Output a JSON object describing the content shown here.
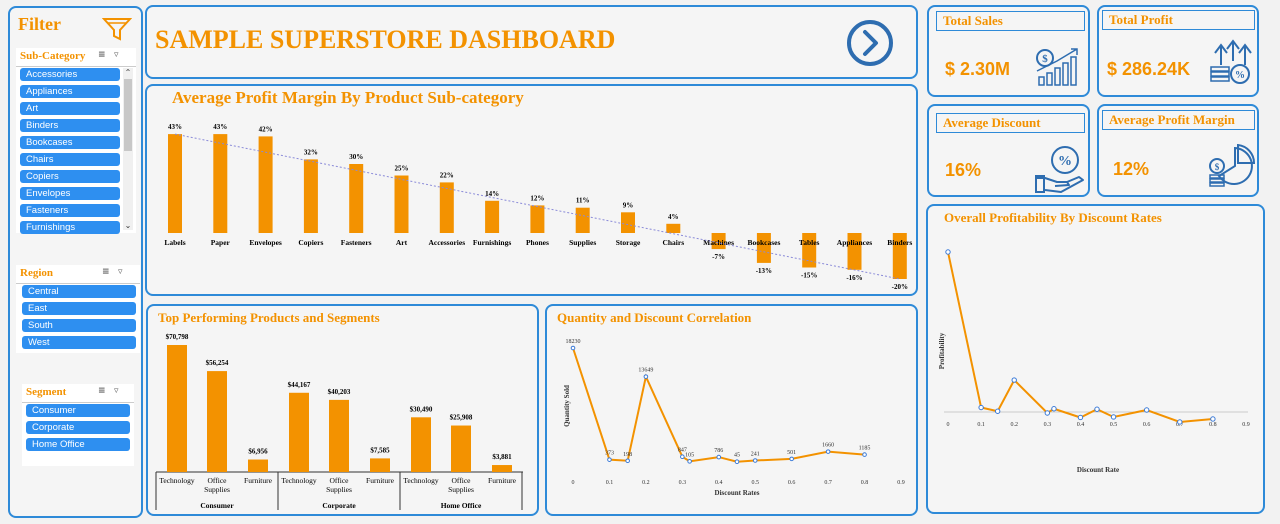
{
  "filter": {
    "title": "Filter",
    "subcategory": {
      "title": "Sub-Category",
      "items": [
        "Accessories",
        "Appliances",
        "Art",
        "Binders",
        "Bookcases",
        "Chairs",
        "Copiers",
        "Envelopes",
        "Fasteners",
        "Furnishings"
      ]
    },
    "region": {
      "title": "Region",
      "items": [
        "Central",
        "East",
        "South",
        "West"
      ]
    },
    "segment": {
      "title": "Segment",
      "items": [
        "Consumer",
        "Corporate",
        "Home Office"
      ]
    }
  },
  "header": {
    "title": "SAMPLE SUPERSTORE DASHBOARD"
  },
  "kpis": {
    "total_sales": {
      "label": "Total Sales",
      "value": "$ 2.30M"
    },
    "total_profit": {
      "label": "Total Profit",
      "value": "$ 286.24K"
    },
    "avg_discount": {
      "label": "Average Discount",
      "value": "16%"
    },
    "avg_margin": {
      "label": "Average Profit Margin",
      "value": "12%"
    }
  },
  "colors": {
    "accent": "#f39200",
    "border": "#2e8ad8",
    "chip": "#2e8ff0",
    "trend": "#8a8ad8"
  },
  "chart_data": [
    {
      "id": "margin",
      "type": "bar",
      "title": "Average Profit Margin By Product Sub-category",
      "categories": [
        "Labels",
        "Paper",
        "Envelopes",
        "Copiers",
        "Fasteners",
        "Art",
        "Accessories",
        "Furnishings",
        "Phones",
        "Supplies",
        "Storage",
        "Chairs",
        "Machines",
        "Bookcases",
        "Tables",
        "Appliances",
        "Binders"
      ],
      "values": [
        43,
        43,
        42,
        32,
        30,
        25,
        22,
        14,
        12,
        11,
        9,
        4,
        -7,
        -13,
        -15,
        -16,
        -20
      ],
      "labels": [
        "43%",
        "43%",
        "42%",
        "32%",
        "30%",
        "25%",
        "22%",
        "14%",
        "12%",
        "11%",
        "9%",
        "4%",
        "-7%",
        "-13%",
        "-15%",
        "-16%",
        "-20%"
      ],
      "trendline": true
    },
    {
      "id": "segments",
      "type": "bar",
      "title": "Top Performing Products and Segments",
      "groups": [
        "Consumer",
        "Corporate",
        "Home Office"
      ],
      "categories": [
        "Technology",
        "Office Supplies",
        "Furniture"
      ],
      "values": [
        [
          70798,
          56254,
          6956
        ],
        [
          44167,
          40203,
          7585
        ],
        [
          30490,
          25908,
          3881
        ]
      ],
      "labels": [
        [
          "$70,798",
          "$56,254",
          "$6,956"
        ],
        [
          "$44,167",
          "$40,203",
          "$7,585"
        ],
        [
          "$30,490",
          "$25,908",
          "$3,881"
        ]
      ]
    },
    {
      "id": "quantity",
      "type": "line",
      "title": "Quantity and Discount Correlation",
      "xlabel": "Discount Rates",
      "ylabel": "Quantity Sold",
      "x": [
        0,
        0.1,
        0.15,
        0.2,
        0.3,
        0.32,
        0.4,
        0.45,
        0.5,
        0.6,
        0.7,
        0.8
      ],
      "y": [
        18230,
        373,
        198,
        13649,
        847,
        105,
        786,
        45,
        241,
        501,
        1660,
        1185
      ],
      "xticks": [
        "0",
        "0.1",
        "0.2",
        "0.3",
        "0.4",
        "0.5",
        "0.6",
        "0.7",
        "0.8",
        "0.9"
      ],
      "xlim": [
        0,
        0.9
      ]
    },
    {
      "id": "profitability",
      "type": "line",
      "title": "Overall Profitability By Discount Rates",
      "xlabel": "Discount Rate",
      "ylabel": "Profitability",
      "x": [
        0,
        0.1,
        0.15,
        0.2,
        0.3,
        0.32,
        0.4,
        0.45,
        0.5,
        0.6,
        0.7,
        0.8
      ],
      "y": [
        320900,
        9000,
        1500,
        64000,
        -2000,
        6500,
        -11000,
        5500,
        -10000,
        4000,
        -20000,
        -14000
      ],
      "xticks": [
        "0",
        "0.1",
        "0.2",
        "0.3",
        "0.4",
        "0.5",
        "0.6",
        "0.7",
        "0.8",
        "0.9"
      ],
      "xlim": [
        0,
        0.9
      ]
    }
  ]
}
